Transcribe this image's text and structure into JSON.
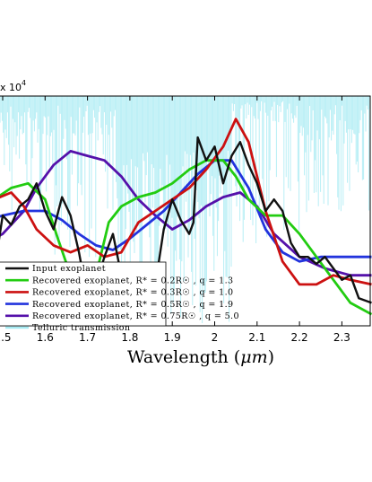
{
  "chart_data": {
    "type": "line",
    "xlabel_text": "Wavelength (",
    "xlabel_unit": "μm",
    "xlabel_close": ")",
    "y_multiplier_prefix": "x 10",
    "y_multiplier_exp": "4",
    "xlim": [
      1.45,
      2.37
    ],
    "ylim": [
      0,
      1
    ],
    "x_ticks": [
      1.5,
      1.6,
      1.7,
      1.8,
      1.9,
      2,
      2.1,
      2.2,
      2.3
    ],
    "x_tick_labels": [
      "1.5",
      "1.6",
      "1.7",
      "1.8",
      "1.9",
      "2",
      "2.1",
      "2.2",
      "2.3"
    ],
    "legend_placement": "lower-left",
    "series": [
      {
        "name": "Input exoplanet",
        "color": "#111111",
        "x": [
          1.45,
          1.47,
          1.49,
          1.5,
          1.52,
          1.54,
          1.56,
          1.58,
          1.6,
          1.62,
          1.64,
          1.66,
          1.68,
          1.7,
          1.72,
          1.74,
          1.76,
          1.78,
          1.8,
          1.82,
          1.84,
          1.86,
          1.88,
          1.9,
          1.92,
          1.94,
          1.95,
          1.96,
          1.98,
          2.0,
          2.02,
          2.04,
          2.06,
          2.08,
          2.1,
          2.12,
          2.14,
          2.16,
          2.18,
          2.2,
          2.22,
          2.24,
          2.26,
          2.28,
          2.3,
          2.32,
          2.34,
          2.37
        ],
        "y": [
          0.55,
          0.5,
          0.36,
          0.48,
          0.44,
          0.52,
          0.55,
          0.62,
          0.5,
          0.42,
          0.56,
          0.48,
          0.32,
          0.12,
          0.18,
          0.3,
          0.4,
          0.22,
          0.05,
          0.05,
          0.12,
          0.18,
          0.42,
          0.55,
          0.46,
          0.4,
          0.45,
          0.82,
          0.72,
          0.78,
          0.62,
          0.74,
          0.8,
          0.7,
          0.62,
          0.5,
          0.55,
          0.5,
          0.36,
          0.3,
          0.3,
          0.27,
          0.3,
          0.25,
          0.2,
          0.22,
          0.12,
          0.1
        ]
      },
      {
        "name": "Recovered exoplanet, R* = 0.2R☉ , q = 1.3",
        "color": "#22cc11",
        "x": [
          1.45,
          1.48,
          1.52,
          1.56,
          1.6,
          1.63,
          1.66,
          1.68,
          1.7,
          1.72,
          1.75,
          1.78,
          1.82,
          1.86,
          1.9,
          1.94,
          1.98,
          2.02,
          2.05,
          2.08,
          2.12,
          2.16,
          2.2,
          2.24,
          2.28,
          2.32,
          2.37
        ],
        "y": [
          0.52,
          0.55,
          0.6,
          0.62,
          0.55,
          0.38,
          0.22,
          0.1,
          0.1,
          0.22,
          0.45,
          0.52,
          0.56,
          0.58,
          0.62,
          0.68,
          0.72,
          0.72,
          0.65,
          0.55,
          0.48,
          0.48,
          0.4,
          0.3,
          0.2,
          0.1,
          0.05
        ]
      },
      {
        "name": "Recovered exoplanet, R* = 0.3R☉ , q = 1.0",
        "color": "#cc1111",
        "x": [
          1.45,
          1.48,
          1.52,
          1.55,
          1.58,
          1.62,
          1.66,
          1.7,
          1.74,
          1.78,
          1.82,
          1.86,
          1.9,
          1.94,
          1.98,
          2.02,
          2.05,
          2.08,
          2.12,
          2.16,
          2.2,
          2.24,
          2.28,
          2.32,
          2.37
        ],
        "y": [
          0.45,
          0.55,
          0.58,
          0.52,
          0.42,
          0.35,
          0.32,
          0.35,
          0.3,
          0.32,
          0.45,
          0.5,
          0.55,
          0.6,
          0.68,
          0.78,
          0.9,
          0.8,
          0.5,
          0.28,
          0.18,
          0.18,
          0.22,
          0.2,
          0.18
        ]
      },
      {
        "name": "Recovered exoplanet, R* = 0.5R☉ , q = 1.9",
        "color": "#2233dd",
        "x": [
          1.45,
          1.5,
          1.55,
          1.6,
          1.64,
          1.68,
          1.72,
          1.76,
          1.8,
          1.84,
          1.88,
          1.92,
          1.96,
          2.0,
          2.04,
          2.08,
          2.12,
          2.16,
          2.2,
          2.25,
          2.3,
          2.37
        ],
        "y": [
          0.45,
          0.48,
          0.5,
          0.5,
          0.46,
          0.4,
          0.35,
          0.33,
          0.38,
          0.44,
          0.5,
          0.58,
          0.66,
          0.72,
          0.72,
          0.6,
          0.42,
          0.32,
          0.28,
          0.3,
          0.3,
          0.3
        ]
      },
      {
        "name": "Recovered exoplanet, R* = 0.75R☉ , q = 5.0",
        "color": "#5511aa",
        "x": [
          1.45,
          1.5,
          1.55,
          1.58,
          1.62,
          1.66,
          1.7,
          1.74,
          1.78,
          1.82,
          1.86,
          1.9,
          1.94,
          1.98,
          2.02,
          2.06,
          2.1,
          2.14,
          2.2,
          2.26,
          2.32,
          2.37
        ],
        "y": [
          0.35,
          0.4,
          0.5,
          0.6,
          0.7,
          0.76,
          0.74,
          0.72,
          0.65,
          0.55,
          0.48,
          0.42,
          0.46,
          0.52,
          0.56,
          0.58,
          0.52,
          0.4,
          0.3,
          0.25,
          0.22,
          0.22
        ]
      },
      {
        "name": "Telluric transmission",
        "color": "#a5eaf2"
      }
    ]
  }
}
